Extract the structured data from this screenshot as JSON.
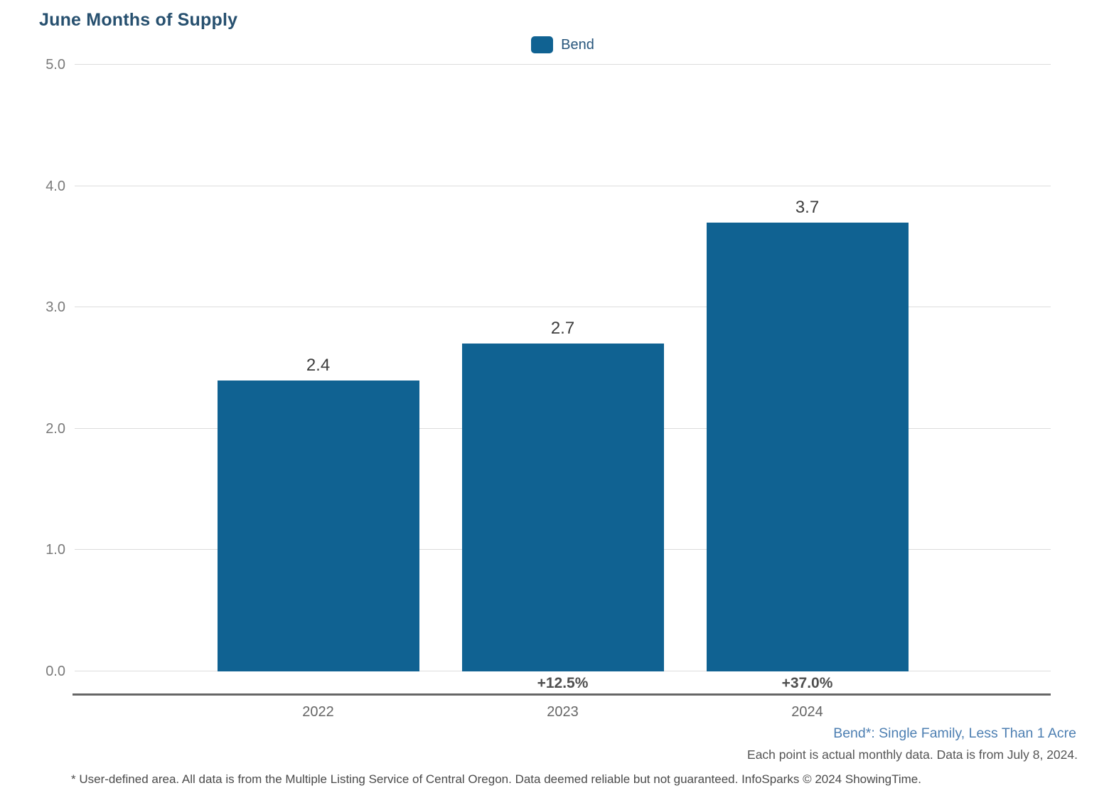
{
  "title": "June Months of Supply",
  "legend": {
    "label": "Bend"
  },
  "chart_data": {
    "type": "bar",
    "title": "June Months of Supply",
    "categories": [
      "2022",
      "2023",
      "2024"
    ],
    "series": [
      {
        "name": "Bend",
        "values": [
          2.4,
          2.7,
          3.7
        ]
      }
    ],
    "value_labels": [
      "2.4",
      "2.7",
      "3.7"
    ],
    "pct_change_labels": [
      "",
      "+12.5%",
      "+37.0%"
    ],
    "ylim": [
      0,
      5
    ],
    "ytick_labels": [
      "0.0",
      "1.0",
      "2.0",
      "3.0",
      "4.0",
      "5.0"
    ],
    "grid": "horizontal",
    "legend_position": "top-center",
    "bar_color": "#106292"
  },
  "footer": {
    "series_note": "Bend*: Single Family, Less Than 1 Acre",
    "data_note": "Each point is actual monthly data. Data is from July 8, 2024.",
    "disclaimer": "* User-defined area. All data is from the Multiple Listing Service of Central Oregon. Data deemed reliable but not guaranteed. InfoSparks © 2024 ShowingTime."
  },
  "colors": {
    "bar": "#106292",
    "title_text": "#27506f",
    "legend_text": "#28567c",
    "grid_line": "#dcdcdc",
    "axis_line": "#666666",
    "ytick_text": "#7a7a7a",
    "xtick_text": "#666666",
    "value_label_text": "#3d3d3d",
    "pct_label_text": "#4f4f4f",
    "series_note_text": "#4d7fb2",
    "data_note_text": "#555555",
    "disclaimer_text": "#4a4a4a"
  }
}
